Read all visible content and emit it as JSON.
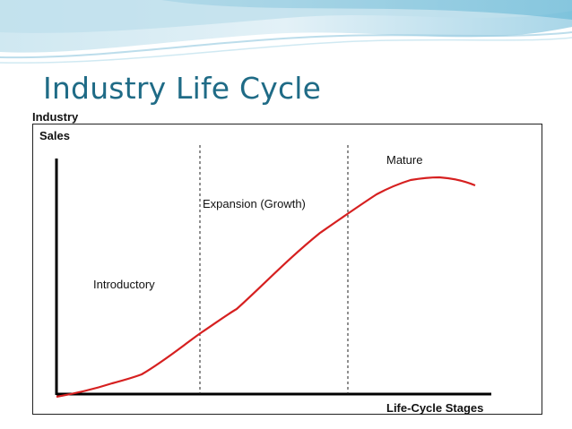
{
  "slide": {
    "title": "Industry Life Cycle"
  },
  "diagram": {
    "y_axis_label_line1": "Industry",
    "y_axis_label_line2": "Sales",
    "x_axis_label": "Life-Cycle Stages",
    "stages": [
      {
        "label": "Introductory"
      },
      {
        "label": "Expansion (Growth)"
      },
      {
        "label": "Mature"
      }
    ],
    "curve_color": "#d62020",
    "axis_color": "#000000",
    "title_color": "#1f6b86"
  }
}
